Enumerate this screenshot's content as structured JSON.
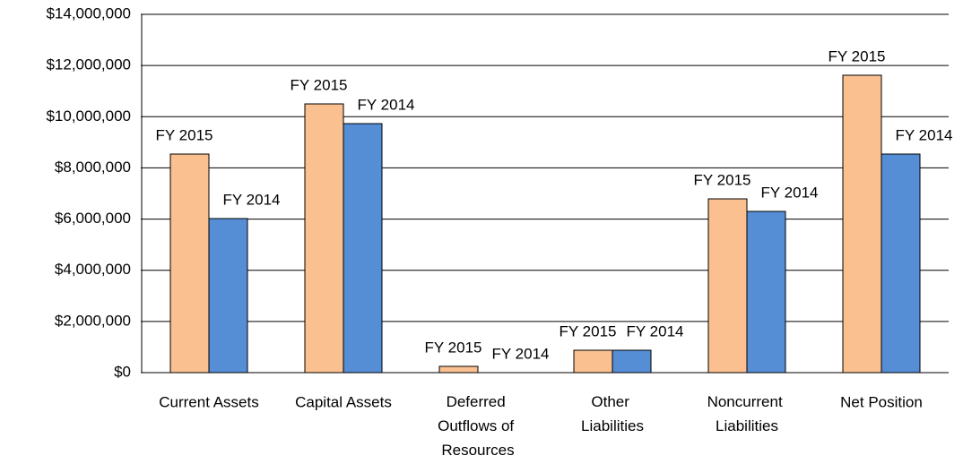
{
  "chart_data": {
    "type": "bar",
    "categories": [
      "Current Assets",
      "Capital Assets",
      "Deferred Outflows of Resources",
      "Other Liabilities",
      "Noncurrent Liabilities",
      "Net Position"
    ],
    "series": [
      {
        "name": "FY 2015",
        "color": "#fac090",
        "values": [
          8540000,
          10500000,
          245000,
          875000,
          6790000,
          11620000
        ]
      },
      {
        "name": "FY 2014",
        "color": "#558ed5",
        "values": [
          6020000,
          9730000,
          0,
          875000,
          6300000,
          8540000
        ]
      }
    ],
    "ylim": [
      0,
      14000000
    ],
    "yticks": [
      {
        "value": 0,
        "label": "$0"
      },
      {
        "value": 2000000,
        "label": "$2,000,000"
      },
      {
        "value": 4000000,
        "label": "$4,000,000"
      },
      {
        "value": 6000000,
        "label": "$6,000,000"
      },
      {
        "value": 8000000,
        "label": "$8,000,000"
      },
      {
        "value": 10000000,
        "label": "$10,000,000"
      },
      {
        "value": 12000000,
        "label": "$12,000,000"
      },
      {
        "value": 14000000,
        "label": "$14,000,000"
      }
    ],
    "grid": true
  }
}
